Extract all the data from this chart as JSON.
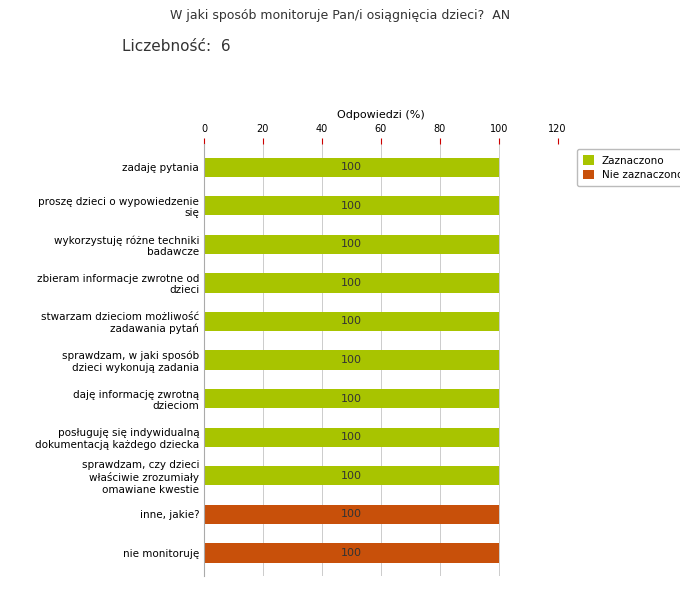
{
  "title": "W jaki sposób monitoruje Pan/i osiągnięcia dzieci?  AN",
  "subtitle": "Liczebność:  6",
  "xlabel": "Odpowiedzi (%)",
  "xlim": [
    0,
    120
  ],
  "xticks": [
    0,
    20,
    40,
    60,
    80,
    100,
    120
  ],
  "categories": [
    "zadaję pytania",
    "proszę dzieci o wypowiedzenie\nsię",
    "wykorzystuję różne techniki\nbadawcze",
    "zbieram informacje zwrotne od\ndzieci",
    "stwarzam dzieciom możliwość\nzadawania pytań",
    "sprawdzam, w jaki sposób\ndzieci wykonują zadania",
    "daję informację zwrotną\ndzieciom",
    "posługuję się indywidualną\ndokumentacją każdego dziecka",
    "sprawdzam, czy dzieci\nwłaściwie zrozumiały\nomawiane kwestie",
    "inne, jakie?",
    "nie monitoruję"
  ],
  "values": [
    100,
    100,
    100,
    100,
    100,
    100,
    100,
    100,
    100,
    100,
    100
  ],
  "bar_colors": [
    "#a8c400",
    "#a8c400",
    "#a8c400",
    "#a8c400",
    "#a8c400",
    "#a8c400",
    "#a8c400",
    "#a8c400",
    "#a8c400",
    "#c8500a",
    "#c8500a"
  ],
  "legend_labels": [
    "Zaznaczono",
    "Nie zaznaczono"
  ],
  "legend_colors": [
    "#a8c400",
    "#c8500a"
  ],
  "bar_height": 0.5,
  "value_label_color": "#333333",
  "value_fontsize": 8,
  "tick_color": "#cc0000",
  "grid_color": "#cccccc",
  "title_fontsize": 9,
  "subtitle_fontsize": 11,
  "xlabel_fontsize": 8,
  "tick_fontsize": 7,
  "label_fontsize": 7.5
}
